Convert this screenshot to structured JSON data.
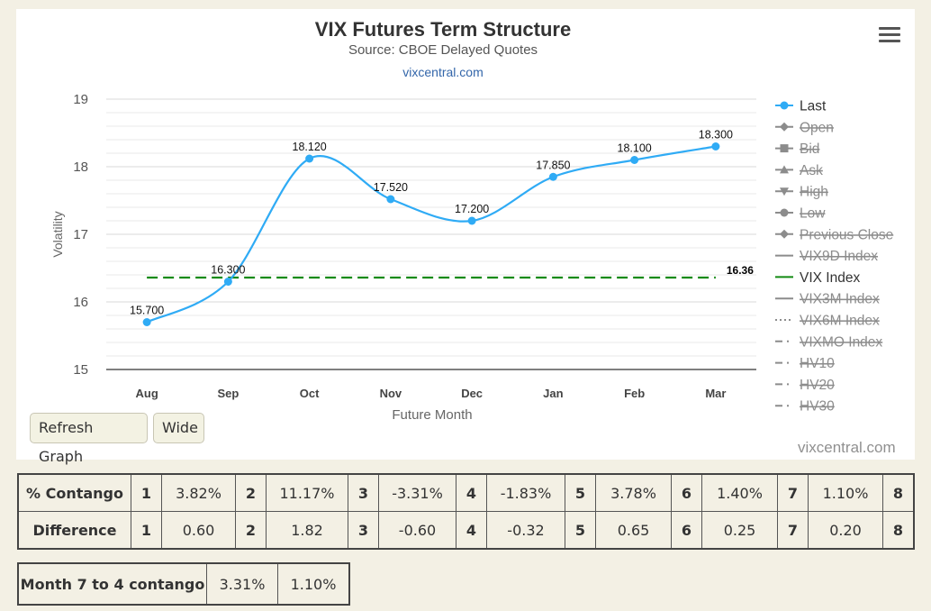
{
  "chart_data": {
    "type": "line",
    "title": "VIX Futures Term Structure",
    "subtitle": "Source: CBOE Delayed Quotes",
    "credit_link": "vixcentral.com",
    "xlabel": "Future Month",
    "ylabel": "Volatility",
    "categories": [
      "Aug",
      "Sep",
      "Oct",
      "Nov",
      "Dec",
      "Jan",
      "Feb",
      "Mar"
    ],
    "ylim": [
      15,
      19
    ],
    "yticks": [
      15,
      16,
      17,
      18,
      19
    ],
    "grid": true,
    "series": [
      {
        "name": "Last",
        "color": "#2fabf5",
        "values": [
          15.7,
          16.3,
          18.12,
          17.52,
          17.2,
          17.85,
          18.1,
          18.3
        ],
        "labels": [
          "15.700",
          "16.300",
          "18.120",
          "17.520",
          "17.200",
          "17.850",
          "18.100",
          "18.300"
        ]
      },
      {
        "name": "VIX Index",
        "color": "#138a13",
        "style": "dashed",
        "value": 16.36,
        "label": "16.36"
      }
    ],
    "legend": {
      "position": "right",
      "items": [
        {
          "name": "Last",
          "hidden": false,
          "marker": "circle"
        },
        {
          "name": "Open",
          "hidden": true,
          "marker": "diamond"
        },
        {
          "name": "Bid",
          "hidden": true,
          "marker": "square"
        },
        {
          "name": "Ask",
          "hidden": true,
          "marker": "triangle"
        },
        {
          "name": "High",
          "hidden": true,
          "marker": "triangle-down"
        },
        {
          "name": "Low",
          "hidden": true,
          "marker": "circle"
        },
        {
          "name": "Previous Close",
          "hidden": true,
          "marker": "diamond"
        },
        {
          "name": "VIX9D Index",
          "hidden": true,
          "marker": "line"
        },
        {
          "name": "VIX Index",
          "hidden": false,
          "marker": "line"
        },
        {
          "name": "VIX3M Index",
          "hidden": true,
          "marker": "line"
        },
        {
          "name": "VIX6M Index",
          "hidden": true,
          "marker": "dotted"
        },
        {
          "name": "VIXMO Index",
          "hidden": true,
          "marker": "dashdot"
        },
        {
          "name": "HV10",
          "hidden": true,
          "marker": "dashdot"
        },
        {
          "name": "HV20",
          "hidden": true,
          "marker": "dashdot"
        },
        {
          "name": "HV30",
          "hidden": true,
          "marker": "dashdot"
        }
      ]
    }
  },
  "buttons": {
    "refresh": "Refresh Graph",
    "wide": "Wide"
  },
  "watermark": "vixcentral.com",
  "stats": {
    "contango_label": "% Contango",
    "difference_label": "Difference",
    "indices": [
      "1",
      "2",
      "3",
      "4",
      "5",
      "6",
      "7",
      "8"
    ],
    "contango": [
      "3.82%",
      "11.17%",
      "-3.31%",
      "-1.83%",
      "3.78%",
      "1.40%",
      "1.10%"
    ],
    "difference": [
      "0.60",
      "1.82",
      "-0.60",
      "-0.32",
      "0.65",
      "0.25",
      "0.20"
    ]
  },
  "month_contango": {
    "label": "Month 7 to 4 contango",
    "values": [
      "3.31%",
      "1.10%"
    ]
  },
  "colors": {
    "accent": "#2fabf5",
    "vix_index": "#138a13",
    "legend_hidden": "#8c8c8c",
    "background": "#f3f0e4"
  }
}
